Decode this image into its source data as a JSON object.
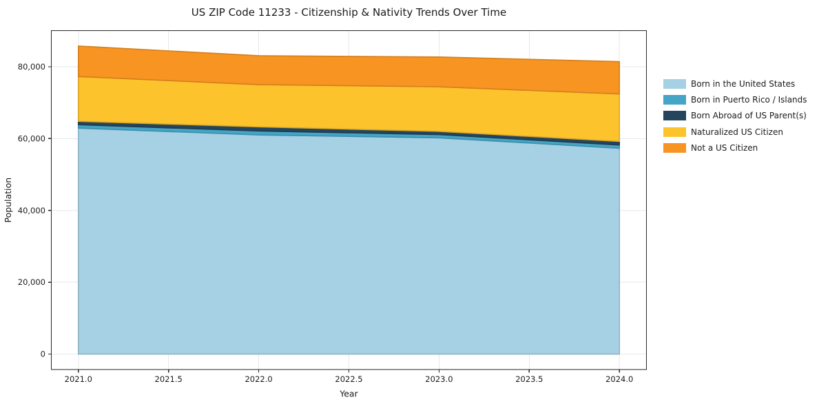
{
  "title": "US ZIP Code 11233 - Citizenship & Nativity Trends Over Time",
  "chart_data": {
    "type": "area",
    "stacked": true,
    "title": "US ZIP Code 11233 - Citizenship & Nativity Trends Over Time",
    "xlabel": "Year",
    "ylabel": "Population",
    "x": [
      2021,
      2022,
      2023,
      2024
    ],
    "series": [
      {
        "name": "Born in the United States",
        "color": "#a6d0e4",
        "values": [
          62900,
          61000,
          60200,
          57300
        ]
      },
      {
        "name": "Born in Puerto Rico / Islands",
        "color": "#45a5c6",
        "values": [
          950,
          1100,
          900,
          900
        ]
      },
      {
        "name": "Born Abroad of US Parent(s)",
        "color": "#24455c",
        "values": [
          950,
          1150,
          900,
          1000
        ]
      },
      {
        "name": "Naturalized US Citizen",
        "color": "#fdc32d",
        "values": [
          12450,
          11750,
          12400,
          13200
        ]
      },
      {
        "name": "Not a US Citizen",
        "color": "#f79422",
        "values": [
          8500,
          8050,
          8300,
          9000
        ]
      }
    ],
    "totals": [
      85750,
      83050,
      82700,
      81400
    ],
    "xlim": [
      2020.85,
      2024.15
    ],
    "ylim": [
      -4288,
      90038
    ],
    "xticks": {
      "values": [
        2021,
        2021.5,
        2022,
        2022.5,
        2023,
        2023.5,
        2024
      ],
      "labels": [
        "2021.0",
        "2021.5",
        "2022.0",
        "2022.5",
        "2023.0",
        "2023.5",
        "2024.0"
      ]
    },
    "yticks": {
      "values": [
        0,
        20000,
        40000,
        60000,
        80000
      ],
      "labels": [
        "0",
        "20,000",
        "40,000",
        "60,000",
        "80,000"
      ]
    },
    "grid": true,
    "legend_position": "right-outside"
  },
  "colors": {
    "background": "#ffffff",
    "grid": "#e7e7e7",
    "spine": "#262626",
    "tick": "#262626",
    "text": "#1a1a1a"
  }
}
